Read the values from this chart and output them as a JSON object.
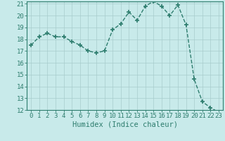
{
  "x": [
    0,
    1,
    2,
    3,
    4,
    5,
    6,
    7,
    8,
    9,
    10,
    11,
    12,
    13,
    14,
    15,
    16,
    17,
    18,
    19,
    20,
    21,
    22,
    23
  ],
  "y": [
    17.5,
    18.2,
    18.5,
    18.2,
    18.2,
    17.8,
    17.5,
    17.0,
    16.85,
    17.0,
    18.8,
    19.3,
    20.3,
    19.6,
    20.8,
    21.2,
    20.8,
    20.0,
    20.9,
    19.2,
    14.6,
    12.7,
    12.2,
    11.8
  ],
  "line_color": "#2e7d6e",
  "marker": "+",
  "marker_size": 4,
  "marker_lw": 1.2,
  "line_width": 1.0,
  "bg_color": "#c8eaea",
  "grid_color": "#a8cccc",
  "xlabel": "Humidex (Indice chaleur)",
  "ylim": [
    12,
    21
  ],
  "xlim": [
    -0.5,
    23.5
  ],
  "yticks": [
    12,
    13,
    14,
    15,
    16,
    17,
    18,
    19,
    20,
    21
  ],
  "xticks": [
    0,
    1,
    2,
    3,
    4,
    5,
    6,
    7,
    8,
    9,
    10,
    11,
    12,
    13,
    14,
    15,
    16,
    17,
    18,
    19,
    20,
    21,
    22,
    23
  ],
  "tick_color": "#2e7d6e",
  "label_color": "#2e7d6e",
  "tick_fontsize": 6.5,
  "xlabel_fontsize": 7.5
}
